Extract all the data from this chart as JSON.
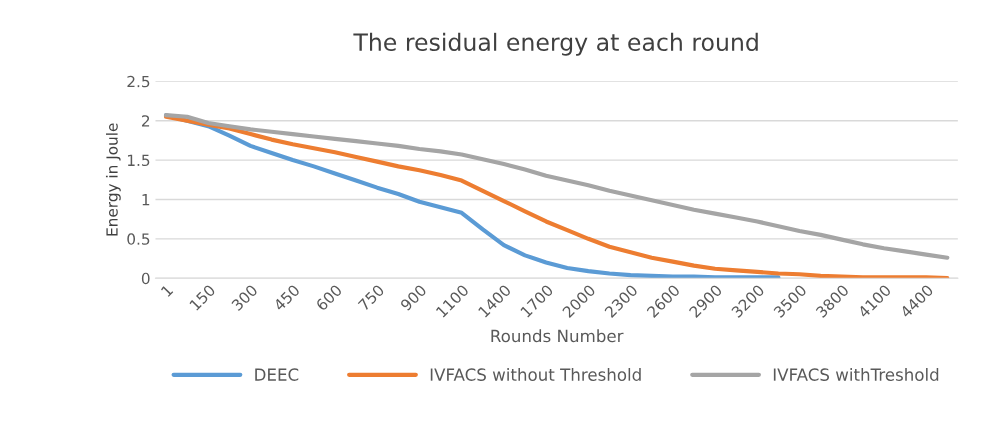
{
  "chart_data": {
    "type": "line",
    "title": "The residual energy at each round",
    "xlabel": "Rounds Number",
    "ylabel": "Energy in Joule",
    "categories": [
      "1",
      null,
      "150",
      null,
      "300",
      null,
      "450",
      null,
      "600",
      null,
      "750",
      null,
      "900",
      null,
      "1100",
      null,
      "1400",
      null,
      "1700",
      null,
      "2000",
      null,
      "2300",
      null,
      "2600",
      null,
      "2900",
      null,
      "3200",
      null,
      "3500",
      null,
      "3800",
      null,
      "4100",
      null,
      "4400",
      null
    ],
    "series": [
      {
        "name": "DEEC",
        "color": "#5b9bd5",
        "values": [
          2.07,
          2.0,
          1.93,
          1.81,
          1.68,
          1.59,
          1.5,
          1.42,
          1.33,
          1.24,
          1.15,
          1.07,
          0.97,
          0.9,
          0.83,
          0.62,
          0.42,
          0.29,
          0.2,
          0.13,
          0.09,
          0.06,
          0.04,
          0.03,
          0.02,
          0.02,
          0.01,
          0.01,
          0.01,
          0.01,
          null,
          null,
          null,
          null,
          null,
          null,
          null,
          null
        ]
      },
      {
        "name": "IVFACS without Threshold",
        "color": "#ed7d31",
        "values": [
          2.05,
          2.0,
          1.95,
          1.9,
          1.83,
          1.76,
          1.7,
          1.65,
          1.6,
          1.54,
          1.48,
          1.42,
          1.37,
          1.31,
          1.24,
          1.11,
          0.98,
          0.85,
          0.72,
          0.61,
          0.5,
          0.4,
          0.33,
          0.26,
          0.21,
          0.16,
          0.12,
          0.1,
          0.08,
          0.06,
          0.05,
          0.03,
          0.02,
          0.01,
          0.01,
          0.01,
          0.01,
          0.0
        ]
      },
      {
        "name": "IVFACS withTreshold",
        "color": "#a5a5a5",
        "values": [
          2.07,
          2.05,
          1.97,
          1.93,
          1.89,
          1.86,
          1.83,
          1.8,
          1.77,
          1.74,
          1.71,
          1.68,
          1.64,
          1.61,
          1.57,
          1.51,
          1.45,
          1.38,
          1.3,
          1.24,
          1.18,
          1.11,
          1.05,
          0.99,
          0.93,
          0.87,
          0.82,
          0.77,
          0.72,
          0.66,
          0.6,
          0.55,
          0.49,
          0.43,
          0.38,
          0.34,
          0.3,
          0.26
        ]
      }
    ],
    "ylim": [
      0,
      2.5
    ],
    "yticks": [
      0,
      0.5,
      1,
      1.5,
      2,
      2.5
    ],
    "grid": "y",
    "legend": "bottom",
    "marker": "none",
    "line_style": "solid"
  }
}
